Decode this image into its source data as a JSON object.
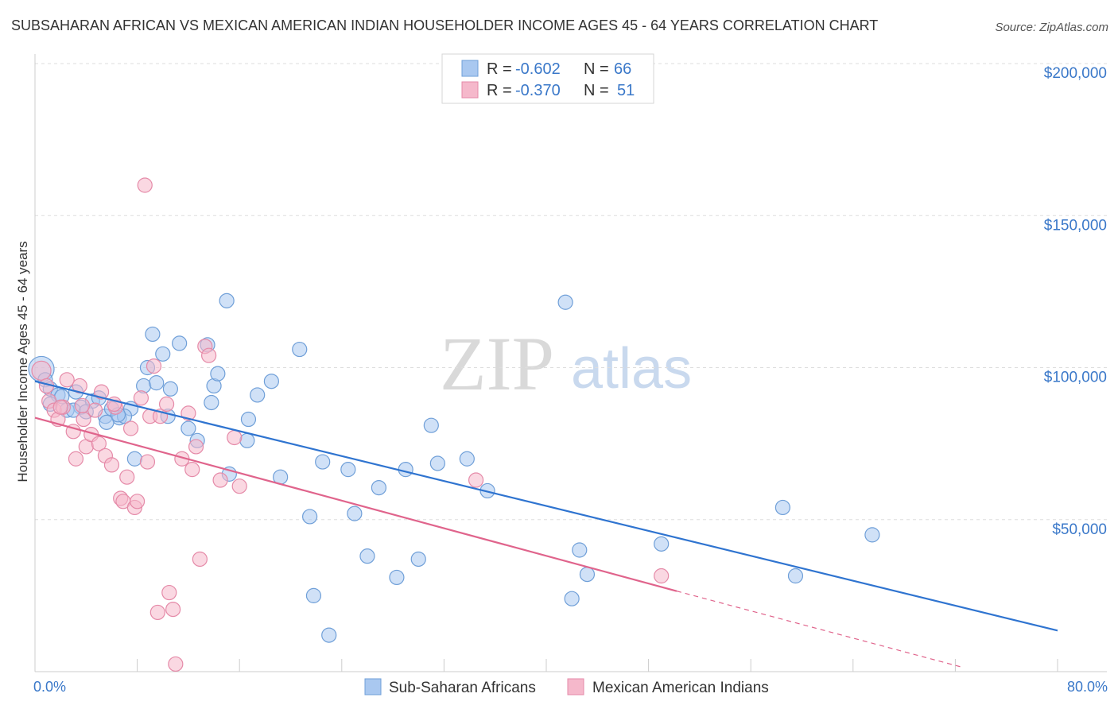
{
  "title": "SUBSAHARAN AFRICAN VS MEXICAN AMERICAN INDIAN HOUSEHOLDER INCOME AGES 45 - 64 YEARS CORRELATION CHART",
  "source": "Source: ZipAtlas.com",
  "watermark": {
    "zip": "ZIP",
    "atlas": "atlas"
  },
  "legend_top": {
    "rows": [
      {
        "r_label": "R =",
        "r_value": "-0.602",
        "n_label": "N =",
        "n_value": "66",
        "color": "#a9c8f0"
      },
      {
        "r_label": "R =",
        "r_value": "-0.370",
        "n_label": "N =",
        "n_value": "51",
        "color": "#f5b8cb"
      }
    ]
  },
  "legend_bottom": [
    {
      "label": "Sub-Saharan Africans",
      "color": "#a9c8f0"
    },
    {
      "label": "Mexican American Indians",
      "color": "#f5b8cb"
    }
  ],
  "chart_data": {
    "type": "scatter",
    "xlabel": "",
    "ylabel": "Householder Income Ages 45 - 64 years",
    "xlim": [
      0,
      80
    ],
    "ylim": [
      0,
      205000
    ],
    "x_tick_labels": [
      {
        "value": 0,
        "label": "0.0%"
      },
      {
        "value": 80,
        "label": "80.0%"
      }
    ],
    "y_tick_labels": [
      {
        "value": 50000,
        "label": "$50,000"
      },
      {
        "value": 100000,
        "label": "$100,000"
      },
      {
        "value": 150000,
        "label": "$150,000"
      },
      {
        "value": 200000,
        "label": "$200,000"
      }
    ],
    "grid": "horizontal dashed",
    "series": [
      {
        "name": "Sub-Saharan Africans",
        "color": "#a9c8f0",
        "edge": "#6f9fd8",
        "line_color": "#2f74d0",
        "trend": {
          "x": [
            0,
            80
          ],
          "y": [
            95500,
            13500
          ]
        },
        "points": [
          [
            0.5,
            99500
          ],
          [
            0.8,
            96000
          ],
          [
            1.2,
            93000
          ],
          [
            1.8,
            91000
          ],
          [
            2.5,
            86000
          ],
          [
            3.2,
            92000
          ],
          [
            3.6,
            87000
          ],
          [
            4.5,
            89000
          ],
          [
            5.5,
            84000
          ],
          [
            6.6,
            83500
          ],
          [
            7.5,
            86500
          ],
          [
            8.5,
            94000
          ],
          [
            9.2,
            111000
          ],
          [
            10,
            104500
          ],
          [
            11.3,
            108000
          ],
          [
            12,
            80000
          ],
          [
            12.7,
            76000
          ],
          [
            13.5,
            107500
          ],
          [
            14,
            94000
          ],
          [
            15,
            122000
          ],
          [
            15.2,
            65000
          ],
          [
            16.6,
            76000
          ],
          [
            16.7,
            83000
          ],
          [
            17.4,
            91000
          ],
          [
            18.5,
            95500
          ],
          [
            20.7,
            106000
          ],
          [
            19.2,
            64000
          ],
          [
            21.5,
            51000
          ],
          [
            21.8,
            25000
          ],
          [
            22.5,
            69000
          ],
          [
            23.0,
            12000
          ],
          [
            24.5,
            66500
          ],
          [
            25,
            52000
          ],
          [
            26,
            38000
          ],
          [
            26.9,
            60500
          ],
          [
            28.3,
            31000
          ],
          [
            29,
            66500
          ],
          [
            30,
            37000
          ],
          [
            31,
            81000
          ],
          [
            31.5,
            68500
          ],
          [
            33.8,
            70000
          ],
          [
            35.4,
            59500
          ],
          [
            41.5,
            121500
          ],
          [
            42,
            24000
          ],
          [
            42.6,
            40000
          ],
          [
            43.2,
            32000
          ],
          [
            49,
            42000
          ],
          [
            58.5,
            54000
          ],
          [
            59.5,
            31500
          ],
          [
            65.5,
            45000
          ],
          [
            1.2,
            88000
          ],
          [
            2.1,
            90500
          ],
          [
            3.0,
            86000
          ],
          [
            5.0,
            90000
          ],
          [
            6.0,
            86500
          ],
          [
            7.0,
            84000
          ],
          [
            8.8,
            100000
          ],
          [
            9.5,
            95000
          ],
          [
            10.6,
            93000
          ],
          [
            4.0,
            85500
          ],
          [
            7.8,
            70000
          ],
          [
            13.8,
            88500
          ],
          [
            10.4,
            84000
          ],
          [
            5.6,
            82000
          ],
          [
            6.5,
            84500
          ],
          [
            14.3,
            98000
          ]
        ]
      },
      {
        "name": "Mexican American Indians",
        "color": "#f5b8cb",
        "edge": "#e58aa8",
        "line_color": "#e0648c",
        "trend": {
          "x": [
            0,
            50.2
          ],
          "y": [
            83500,
            26500
          ]
        },
        "trend_dashed": {
          "x": [
            50.2,
            72.5
          ],
          "y": [
            26500,
            1500
          ]
        },
        "points": [
          [
            0.5,
            99000
          ],
          [
            0.9,
            94000
          ],
          [
            1.1,
            89000
          ],
          [
            1.5,
            86000
          ],
          [
            1.8,
            83000
          ],
          [
            2.2,
            87000
          ],
          [
            2.5,
            96000
          ],
          [
            3.0,
            79000
          ],
          [
            3.2,
            70000
          ],
          [
            3.5,
            94000
          ],
          [
            3.8,
            83000
          ],
          [
            4.0,
            74000
          ],
          [
            4.4,
            78000
          ],
          [
            4.7,
            86000
          ],
          [
            5.0,
            75000
          ],
          [
            5.2,
            92000
          ],
          [
            5.5,
            71000
          ],
          [
            6.0,
            68000
          ],
          [
            6.3,
            87000
          ],
          [
            6.7,
            57000
          ],
          [
            6.9,
            56000
          ],
          [
            7.2,
            64000
          ],
          [
            7.5,
            80000
          ],
          [
            7.8,
            54000
          ],
          [
            8.0,
            56000
          ],
          [
            8.3,
            90000
          ],
          [
            8.6,
            160000
          ],
          [
            8.8,
            69000
          ],
          [
            9.0,
            84000
          ],
          [
            9.3,
            100500
          ],
          [
            9.6,
            19500
          ],
          [
            9.8,
            84000
          ],
          [
            10.3,
            88000
          ],
          [
            10.5,
            26000
          ],
          [
            10.8,
            20500
          ],
          [
            11.0,
            2500
          ],
          [
            11.5,
            70000
          ],
          [
            12.0,
            85000
          ],
          [
            12.3,
            66500
          ],
          [
            12.6,
            74000
          ],
          [
            12.9,
            37000
          ],
          [
            13.3,
            107000
          ],
          [
            13.6,
            104000
          ],
          [
            14.5,
            63000
          ],
          [
            15.6,
            77000
          ],
          [
            16.0,
            61000
          ],
          [
            34.5,
            63000
          ],
          [
            49.0,
            31500
          ],
          [
            2.0,
            87000
          ],
          [
            3.7,
            87500
          ],
          [
            6.2,
            88000
          ]
        ]
      }
    ]
  }
}
